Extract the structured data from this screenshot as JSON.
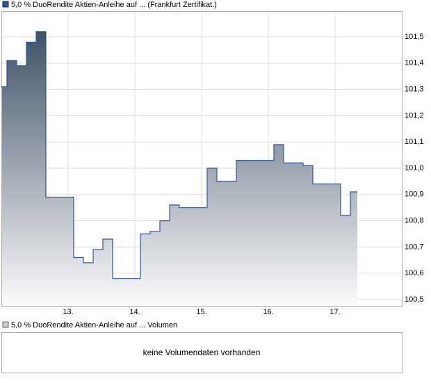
{
  "chart_data": {
    "type": "line",
    "title": "5,0 % DuoRendite Aktien-Anleihe auf ... (Frankfurt Zertifikat.)",
    "drawstyle": "steps-post",
    "x": [
      12.0,
      12.083,
      12.229,
      12.375,
      12.521,
      12.667,
      13.083,
      13.229,
      13.375,
      13.521,
      13.667,
      14.083,
      14.229,
      14.375,
      14.521,
      14.667,
      15.083,
      15.229,
      15.521,
      16.083,
      16.229,
      16.521,
      16.667,
      17.083,
      17.229,
      17.333
    ],
    "series": [
      {
        "name": "5,0 % DuoRendite Aktien-Anleihe auf ... (Frankfurt Zertifikat.)",
        "color": "#2a55a5",
        "values": [
          101.31,
          101.41,
          101.39,
          101.48,
          101.52,
          100.89,
          100.66,
          100.64,
          100.69,
          100.73,
          100.58,
          100.75,
          100.76,
          100.8,
          100.86,
          100.85,
          101.0,
          100.95,
          101.03,
          101.09,
          101.02,
          101.01,
          100.94,
          100.82,
          100.91,
          100.91
        ]
      }
    ],
    "xlim": [
      12.0,
      18.0
    ],
    "xticks": [
      {
        "value": 13,
        "label": "13."
      },
      {
        "value": 14,
        "label": "14."
      },
      {
        "value": 15,
        "label": "15."
      },
      {
        "value": 16,
        "label": "16."
      },
      {
        "value": 17,
        "label": "17."
      }
    ],
    "ylim": [
      100.476,
      101.598
    ],
    "yticks": [
      {
        "value": 100.5,
        "label": "100,5"
      },
      {
        "value": 100.6,
        "label": "100,6"
      },
      {
        "value": 100.7,
        "label": "100,7"
      },
      {
        "value": 100.8,
        "label": "100,8"
      },
      {
        "value": 100.9,
        "label": "100,9"
      },
      {
        "value": 101.0,
        "label": "101,0"
      },
      {
        "value": 101.1,
        "label": "101,1"
      },
      {
        "value": 101.2,
        "label": "101,2"
      },
      {
        "value": 101.3,
        "label": "101,3"
      },
      {
        "value": 101.4,
        "label": "101,4"
      },
      {
        "value": 101.5,
        "label": "101,5"
      }
    ],
    "grid": true
  },
  "volume_panel": {
    "legend": "5,0 % DuoRendite Aktien-Anleihe auf ... Volumen",
    "message": "keine Volumendaten vorhanden"
  }
}
